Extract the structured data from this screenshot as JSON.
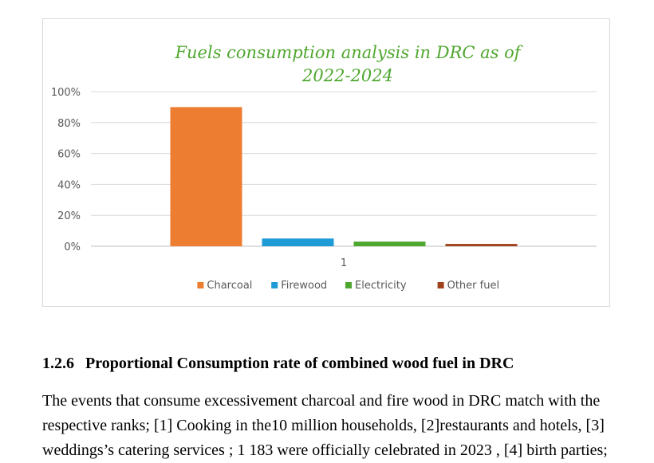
{
  "chart_data": {
    "type": "bar",
    "title_lines": [
      "Fuels consumption analysis in DRC as of",
      "2022-2024"
    ],
    "categories": [
      "1"
    ],
    "series": [
      {
        "name": "Charcoal",
        "values": [
          0.9
        ],
        "color": "#ED7D31"
      },
      {
        "name": "Firewood",
        "values": [
          0.05
        ],
        "color": "#1F9BD7"
      },
      {
        "name": "Electricity",
        "values": [
          0.03
        ],
        "color": "#4EA72E"
      },
      {
        "name": "Other fuel",
        "values": [
          0.015
        ],
        "color": "#A0431C"
      }
    ],
    "yticks": [
      "0%",
      "20%",
      "40%",
      "60%",
      "80%",
      "100%"
    ],
    "ylim": [
      0,
      1
    ],
    "grid": true,
    "legend": "bottom",
    "title_color": "#4EA72E"
  },
  "section": {
    "number": "1.2.6",
    "title": "Proportional Consumption rate of combined wood fuel in DRC"
  },
  "body_lines": [
    "The events that consume excessivement charcoal and fire wood in DRC match with the",
    "respective ranks; [1] Cooking in the10 million households, [2]restaurants and hotels, [3]",
    "weddings’s catering services ; 1 183 were officially celebrated in 2023 , [4] birth parties;"
  ]
}
